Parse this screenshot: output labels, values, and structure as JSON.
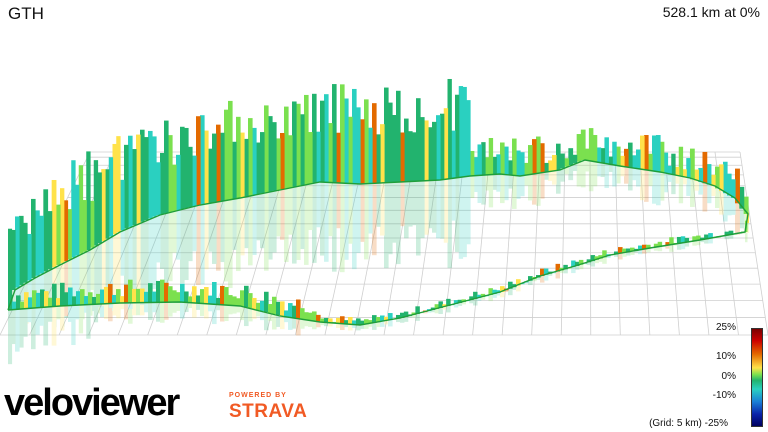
{
  "header": {
    "title": "GTH",
    "stats": "528.1 km at 0%"
  },
  "legend": {
    "labels": [
      "25%",
      "10%",
      "0%",
      "-10%",
      "-25%"
    ],
    "grid_note": "(Grid: 5 km)",
    "colors": [
      "#7a0000",
      "#cc0000",
      "#e36a00",
      "#ffe24a",
      "#7be04f",
      "#22b36e",
      "#2ad0c0",
      "#1a7fd6",
      "#0a22a8"
    ]
  },
  "branding": {
    "logo_text": "veloviewer",
    "powered_by": "POWERED BY",
    "partner": "STRAVA",
    "brand_color": "#e8192c",
    "partner_color": "#f15a24"
  },
  "route_color": "#1f9e3a"
}
